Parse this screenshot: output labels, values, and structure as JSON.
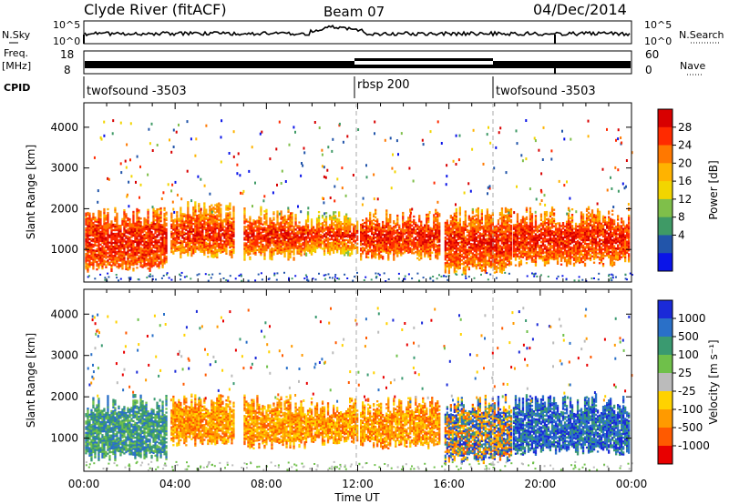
{
  "header": {
    "title": "Clyde River (fitACF)",
    "beam": "Beam 07",
    "date": "04/Dec/2014"
  },
  "summary": {
    "nsky_label": "N.Sky",
    "nsearch_label": "N.Search",
    "nsky_ticks": [
      "10^5",
      "10^0"
    ],
    "nsky_right_ticks": [
      "10^5",
      "10^0"
    ],
    "freq_label_1": "Freq.",
    "freq_label_2": "[MHz]",
    "freq_ticks": [
      "18",
      "8"
    ],
    "nave_label": "Nave",
    "nave_ticks": [
      "60",
      "0"
    ],
    "cpid_label": "CPID",
    "cpid_segments": [
      {
        "label": "twofsound -3503",
        "start_hour": 0
      },
      {
        "label": "rbsp 200",
        "start_hour": 12
      },
      {
        "label": "twofsound -3503",
        "start_hour": 18
      }
    ]
  },
  "chart_data": [
    {
      "type": "heatmap",
      "name": "power",
      "xlabel": "",
      "ylabel": "Slant Range [km]",
      "xlim": [
        0,
        24
      ],
      "ylim": [
        200,
        4600
      ],
      "yticks": [
        1000,
        2000,
        3000,
        4000
      ],
      "colorbar": {
        "label": "Power [dB]",
        "ticks": [
          "28",
          "24",
          "20",
          "16",
          "12",
          "8",
          "4"
        ],
        "colors": [
          "#d80000",
          "#ff2a00",
          "#ff7800",
          "#ffb300",
          "#f2d500",
          "#7fbf4a",
          "#3f9a66",
          "#2255aa",
          "#0a14e8"
        ]
      },
      "clusters": [
        {
          "t0": 0.05,
          "t1": 3.6,
          "r0": 560,
          "r1": 1800,
          "level": 0.85
        },
        {
          "t0": 3.8,
          "t1": 6.6,
          "r0": 900,
          "r1": 1900,
          "level": 0.72
        },
        {
          "t0": 7.0,
          "t1": 9.7,
          "r0": 850,
          "r1": 1800,
          "level": 0.7
        },
        {
          "t0": 9.7,
          "t1": 12.0,
          "r0": 950,
          "r1": 1700,
          "level": 0.55
        },
        {
          "t0": 12.1,
          "t1": 15.6,
          "r0": 850,
          "r1": 1750,
          "level": 0.82
        },
        {
          "t0": 15.8,
          "t1": 18.7,
          "r0": 500,
          "r1": 1800,
          "level": 0.75
        },
        {
          "t0": 18.8,
          "t1": 23.9,
          "r0": 700,
          "r1": 1800,
          "level": 0.8
        }
      ]
    },
    {
      "type": "heatmap",
      "name": "velocity",
      "xlabel": "Time UT",
      "ylabel": "Slant Range [km]",
      "xlim": [
        0,
        24
      ],
      "ylim": [
        200,
        4600
      ],
      "xticks": [
        "00:00",
        "04:00",
        "08:00",
        "12:00",
        "16:00",
        "20:00",
        "00:00"
      ],
      "yticks": [
        1000,
        2000,
        3000,
        4000
      ],
      "colorbar": {
        "label": "Velocity [m s⁻¹]",
        "ticks": [
          "1000",
          "500",
          "100",
          "25",
          "-25",
          "-100",
          "-500",
          "-1000"
        ],
        "colors": [
          "#1a2ad8",
          "#2a70c8",
          "#3a9a70",
          "#6fc04a",
          "#bbbbbb",
          "#ffd200",
          "#ff9a00",
          "#ff5a00",
          "#e80000"
        ]
      },
      "clusters": [
        {
          "t0": 0.05,
          "t1": 3.6,
          "r0": 560,
          "r1": 1800,
          "tone": "green"
        },
        {
          "t0": 3.8,
          "t1": 6.6,
          "r0": 900,
          "r1": 1900,
          "tone": "orange"
        },
        {
          "t0": 7.0,
          "t1": 9.7,
          "r0": 850,
          "r1": 1800,
          "tone": "orange"
        },
        {
          "t0": 9.7,
          "t1": 12.0,
          "r0": 950,
          "r1": 1700,
          "tone": "orange"
        },
        {
          "t0": 12.1,
          "t1": 15.6,
          "r0": 850,
          "r1": 1750,
          "tone": "orange"
        },
        {
          "t0": 15.8,
          "t1": 18.7,
          "r0": 500,
          "r1": 1800,
          "tone": "mixed"
        },
        {
          "t0": 18.8,
          "t1": 23.9,
          "r0": 700,
          "r1": 1800,
          "tone": "blue"
        }
      ]
    }
  ]
}
